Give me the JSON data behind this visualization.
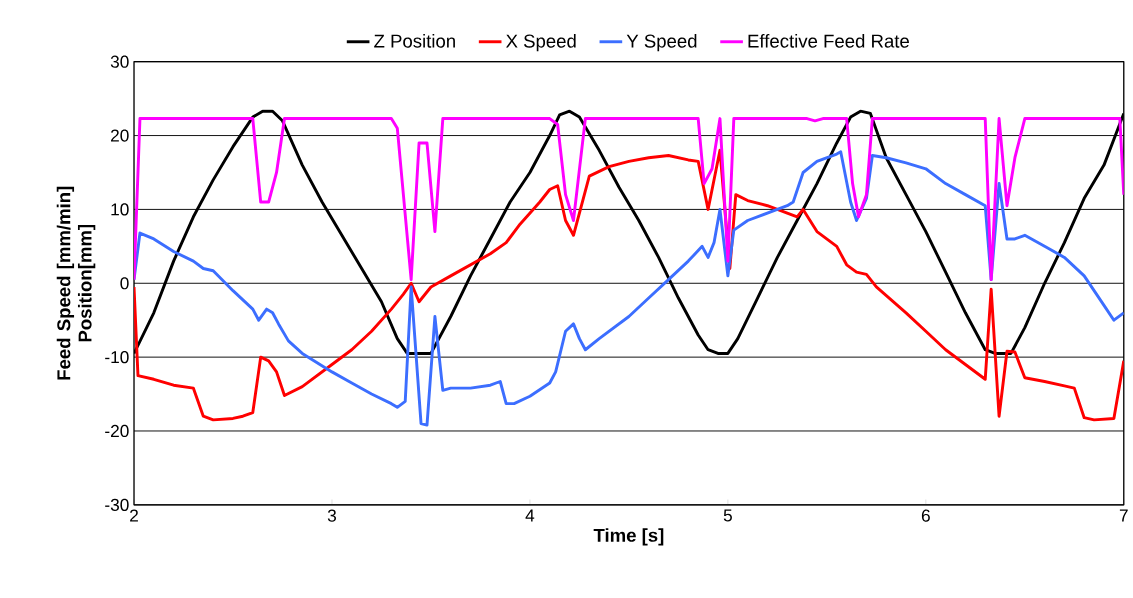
{
  "chart_data": {
    "type": "line",
    "xlabel": "Time [s]",
    "ylabel": "Feed Speed [mm/min] Position[mm]",
    "xlim": [
      2,
      7
    ],
    "xticks": [
      2,
      3,
      4,
      5,
      6,
      7
    ],
    "ylim": [
      -30,
      30
    ],
    "yticks": [
      -30,
      -20,
      -10,
      0,
      10,
      20,
      30
    ],
    "grid": "y",
    "legend": "top",
    "marker": "none",
    "line_style": "solid",
    "series": [
      {
        "name": "Z Position",
        "color": "#000000",
        "x": [
          2.0,
          2.1,
          2.2,
          2.3,
          2.4,
          2.5,
          2.6,
          2.65,
          2.7,
          2.75,
          2.85,
          2.95,
          3.05,
          3.15,
          3.25,
          3.33,
          3.38,
          3.5,
          3.6,
          3.7,
          3.8,
          3.9,
          4.0,
          4.1,
          4.15,
          4.2,
          4.25,
          4.35,
          4.45,
          4.55,
          4.65,
          4.75,
          4.85,
          4.9,
          4.95,
          5.0,
          5.05,
          5.15,
          5.25,
          5.35,
          5.45,
          5.55,
          5.62,
          5.67,
          5.72,
          5.8,
          5.9,
          6.0,
          6.1,
          6.2,
          6.3,
          6.35,
          6.43,
          6.5,
          6.6,
          6.7,
          6.8,
          6.9,
          7.0
        ],
        "values": [
          -9.5,
          -4,
          3,
          9,
          14,
          18.5,
          22.5,
          23.3,
          23.3,
          22,
          16,
          11,
          6.5,
          2,
          -2.5,
          -7.5,
          -9.5,
          -9.5,
          -4.5,
          1,
          6,
          11,
          15,
          20,
          22.8,
          23.3,
          22.5,
          18,
          13,
          8.5,
          3.5,
          -2,
          -7,
          -9,
          -9.5,
          -9.5,
          -7.5,
          -2,
          3.5,
          8.5,
          13.5,
          19,
          22.5,
          23.3,
          23,
          17,
          12,
          7,
          1.5,
          -4,
          -9,
          -9.5,
          -9.5,
          -6,
          0,
          5.5,
          11.5,
          16,
          23
        ]
      },
      {
        "name": "X Speed",
        "color": "#ff0000",
        "x": [
          2.0,
          2.02,
          2.1,
          2.2,
          2.3,
          2.35,
          2.4,
          2.5,
          2.55,
          2.6,
          2.64,
          2.68,
          2.72,
          2.76,
          2.85,
          3.0,
          3.1,
          3.2,
          3.3,
          3.36,
          3.4,
          3.44,
          3.5,
          3.6,
          3.7,
          3.8,
          3.88,
          3.95,
          4.05,
          4.1,
          4.14,
          4.18,
          4.22,
          4.3,
          4.4,
          4.5,
          4.6,
          4.7,
          4.8,
          4.85,
          4.9,
          4.96,
          5.01,
          5.04,
          5.1,
          5.2,
          5.3,
          5.35,
          5.38,
          5.45,
          5.55,
          5.6,
          5.65,
          5.7,
          5.75,
          5.9,
          6.0,
          6.1,
          6.2,
          6.3,
          6.33,
          6.37,
          6.41,
          6.45,
          6.5,
          6.6,
          6.7,
          6.75,
          6.8,
          6.85,
          6.95,
          7.0
        ],
        "values": [
          -0.5,
          -12.5,
          -13,
          -13.8,
          -14.2,
          -18,
          -18.5,
          -18.3,
          -18,
          -17.5,
          -10,
          -10.5,
          -12,
          -15.2,
          -14,
          -11,
          -9,
          -6.5,
          -3.5,
          -1.5,
          0,
          -2.5,
          -0.5,
          1,
          2.5,
          4,
          5.5,
          8,
          11,
          12.7,
          13.2,
          8.5,
          6.5,
          14.5,
          15.8,
          16.5,
          17,
          17.3,
          16.7,
          16.5,
          10,
          18,
          2,
          12,
          11.2,
          10.5,
          9.5,
          9,
          10,
          7,
          5,
          2.5,
          1.5,
          1.2,
          -0.5,
          -4,
          -6.5,
          -9,
          -11,
          -13,
          -0.8,
          -18,
          -9.2,
          -9.3,
          -12.8,
          -13.3,
          -13.9,
          -14.2,
          -18.2,
          -18.5,
          -18.3,
          -10.5
        ]
      },
      {
        "name": "Y Speed",
        "color": "#3c6eff",
        "x": [
          2.0,
          2.03,
          2.1,
          2.2,
          2.3,
          2.35,
          2.4,
          2.5,
          2.6,
          2.63,
          2.67,
          2.7,
          2.73,
          2.78,
          2.85,
          3.0,
          3.1,
          3.2,
          3.3,
          3.33,
          3.37,
          3.4,
          3.45,
          3.48,
          3.52,
          3.56,
          3.6,
          3.7,
          3.8,
          3.85,
          3.88,
          3.92,
          4.0,
          4.1,
          4.13,
          4.18,
          4.22,
          4.25,
          4.28,
          4.35,
          4.5,
          4.6,
          4.7,
          4.8,
          4.87,
          4.9,
          4.93,
          4.96,
          5.0,
          5.03,
          5.1,
          5.2,
          5.3,
          5.33,
          5.38,
          5.45,
          5.55,
          5.57,
          5.62,
          5.65,
          5.7,
          5.73,
          5.8,
          5.9,
          6.0,
          6.1,
          6.2,
          6.3,
          6.33,
          6.37,
          6.41,
          6.45,
          6.5,
          6.6,
          6.7,
          6.8,
          6.9,
          6.95,
          7.0
        ],
        "values": [
          0.5,
          6.8,
          6,
          4.3,
          3,
          2,
          1.7,
          -1,
          -3.5,
          -5,
          -3.5,
          -4,
          -5.5,
          -7.8,
          -9.5,
          -12,
          -13.5,
          -15,
          -16.3,
          -16.8,
          -16,
          -0.5,
          -19,
          -19.2,
          -4.5,
          -14.5,
          -14.2,
          -14.2,
          -13.8,
          -13.3,
          -16.3,
          -16.3,
          -15.3,
          -13.5,
          -12,
          -6.5,
          -5.5,
          -7.5,
          -9,
          -7.5,
          -4.5,
          -2,
          0.5,
          3,
          5,
          3.5,
          5.5,
          10,
          1,
          7.2,
          8.5,
          9.5,
          10.5,
          11,
          15,
          16.5,
          17.5,
          17.8,
          11,
          8.5,
          11.5,
          17.3,
          17,
          16.3,
          15.5,
          13.5,
          12,
          10.5,
          0.5,
          13.5,
          6,
          6,
          6.5,
          5,
          3.5,
          1,
          -3,
          -5,
          -4
        ]
      },
      {
        "name": "Effective Feed Rate",
        "color": "#ff00ff",
        "x": [
          2.0,
          2.03,
          2.6,
          2.64,
          2.68,
          2.72,
          2.76,
          3.3,
          3.33,
          3.4,
          3.44,
          3.48,
          3.52,
          3.56,
          4.1,
          4.14,
          4.18,
          4.22,
          4.28,
          4.85,
          4.88,
          4.92,
          4.96,
          5.0,
          5.03,
          5.4,
          5.44,
          5.48,
          5.6,
          5.63,
          5.66,
          5.7,
          5.73,
          6.3,
          6.33,
          6.37,
          6.41,
          6.45,
          6.5,
          6.98,
          7.0
        ],
        "values": [
          0.5,
          22.3,
          22.3,
          11,
          11,
          15,
          22.3,
          22.3,
          21,
          0.5,
          19,
          19,
          7,
          22.3,
          22.3,
          21.5,
          12,
          8.5,
          22.3,
          22.3,
          13.5,
          15.5,
          22.3,
          3,
          22.3,
          22.3,
          22,
          22.3,
          22.3,
          13.5,
          9,
          12,
          22.3,
          22.3,
          0.5,
          22.3,
          10.5,
          17,
          22.3,
          22.3,
          12
        ]
      }
    ]
  }
}
